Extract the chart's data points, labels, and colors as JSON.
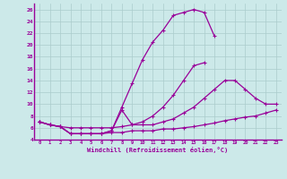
{
  "xlabel": "Windchill (Refroidissement éolien,°C)",
  "xlim": [
    -0.5,
    23.5
  ],
  "ylim": [
    4,
    27
  ],
  "xticks": [
    0,
    1,
    2,
    3,
    4,
    5,
    6,
    7,
    8,
    9,
    10,
    11,
    12,
    13,
    14,
    15,
    16,
    17,
    18,
    19,
    20,
    21,
    22,
    23
  ],
  "yticks": [
    4,
    6,
    8,
    10,
    12,
    14,
    16,
    18,
    20,
    22,
    24,
    26
  ],
  "bg_color": "#cce9e9",
  "grid_color": "#aacccc",
  "line_color": "#990099",
  "series": [
    {
      "x": [
        0,
        1,
        2,
        3,
        4,
        5,
        6,
        7,
        8,
        9,
        10,
        11,
        12,
        13,
        14,
        15,
        16,
        17,
        18,
        19,
        20,
        21,
        22,
        23
      ],
      "y": [
        7.0,
        6.5,
        6.2,
        5.0,
        5.0,
        5.0,
        5.0,
        5.2,
        5.2,
        5.5,
        5.5,
        5.5,
        5.8,
        5.8,
        6.0,
        6.2,
        6.5,
        6.8,
        7.2,
        7.5,
        7.8,
        8.0,
        8.5,
        9.0
      ]
    },
    {
      "x": [
        0,
        1,
        2,
        3,
        4,
        5,
        6,
        7,
        8,
        9,
        10,
        11,
        12,
        13,
        14,
        15,
        16,
        17,
        18,
        19,
        20,
        21,
        22,
        23
      ],
      "y": [
        7.0,
        6.5,
        6.2,
        6.0,
        6.0,
        6.0,
        6.0,
        6.0,
        6.2,
        6.5,
        7.0,
        8.0,
        9.5,
        11.5,
        14.0,
        16.5,
        17.0,
        null,
        null,
        null,
        null,
        null,
        null,
        null
      ]
    },
    {
      "x": [
        0,
        1,
        2,
        3,
        4,
        5,
        6,
        7,
        8,
        9,
        10,
        11,
        12,
        13,
        14,
        15,
        16,
        17,
        18,
        19,
        20,
        21,
        22,
        23
      ],
      "y": [
        7.0,
        6.5,
        6.2,
        5.0,
        5.0,
        5.0,
        5.0,
        5.5,
        9.5,
        13.5,
        17.5,
        20.5,
        22.5,
        25.0,
        25.5,
        26.0,
        25.5,
        21.5,
        null,
        null,
        null,
        null,
        null,
        null
      ]
    },
    {
      "x": [
        0,
        1,
        2,
        3,
        4,
        5,
        6,
        7,
        8,
        9,
        10,
        11,
        12,
        13,
        14,
        15,
        16,
        17,
        18,
        19,
        20,
        21,
        22,
        23
      ],
      "y": [
        7.0,
        6.5,
        6.2,
        5.0,
        5.0,
        5.0,
        5.0,
        5.5,
        9.0,
        6.5,
        6.5,
        6.5,
        7.0,
        7.5,
        8.5,
        9.5,
        11.0,
        12.5,
        14.0,
        14.0,
        12.5,
        11.0,
        10.0,
        10.0
      ]
    }
  ]
}
